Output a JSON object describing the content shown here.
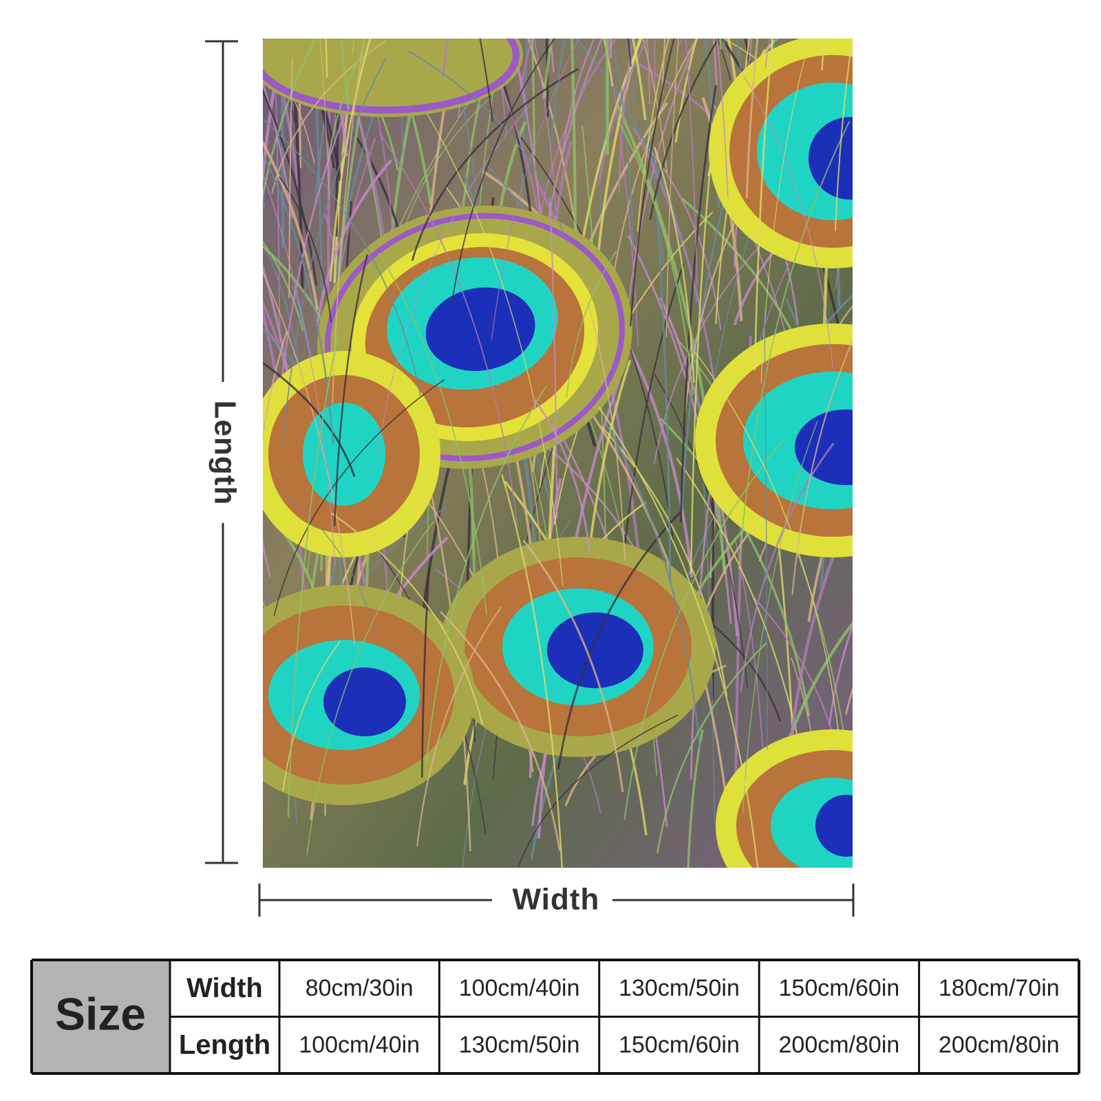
{
  "dimension_labels": {
    "length": "Length",
    "width": "Width"
  },
  "size_table": {
    "header": "Size",
    "rows": [
      {
        "label": "Width",
        "values": [
          "80cm/30in",
          "100cm/40in",
          "130cm/50in",
          "150cm/60in",
          "180cm/70in"
        ]
      },
      {
        "label": "Length",
        "values": [
          "100cm/40in",
          "130cm/50in",
          "150cm/60in",
          "200cm/80in",
          "200cm/80in"
        ]
      }
    ]
  }
}
